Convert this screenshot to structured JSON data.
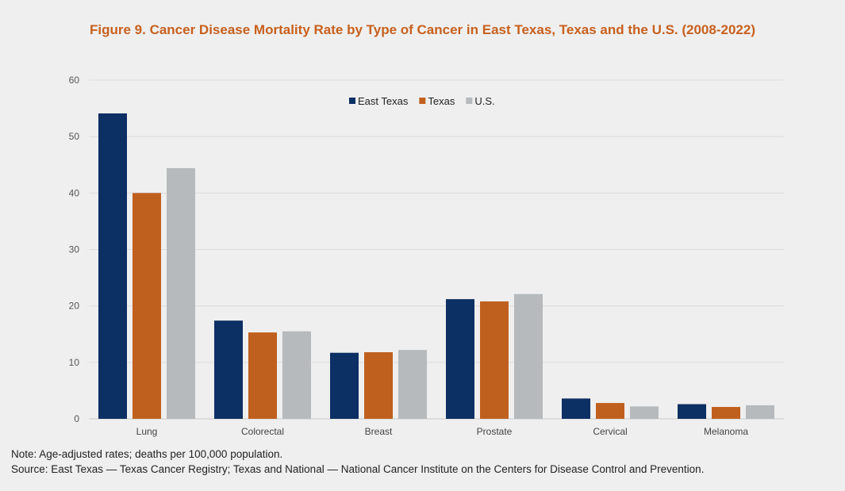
{
  "chart_data": {
    "type": "bar",
    "title": "Figure 9. Cancer Disease Mortality Rate by Type of Cancer in East Texas, Texas and the U.S. (2008-2022)",
    "categories": [
      "Lung",
      "Colorectal",
      "Breast",
      "Prostate",
      "Cervical",
      "Melanoma"
    ],
    "series": [
      {
        "name": "East Texas",
        "color": "#0c2f64",
        "values": [
          54.1,
          17.4,
          11.7,
          21.2,
          3.6,
          2.6
        ]
      },
      {
        "name": "Texas",
        "color": "#c0601f",
        "values": [
          40.0,
          15.3,
          11.8,
          20.8,
          2.8,
          2.1
        ]
      },
      {
        "name": "U.S.",
        "color": "#b6babd",
        "values": [
          44.4,
          15.5,
          12.2,
          22.1,
          2.2,
          2.4
        ]
      }
    ],
    "ylim": [
      0,
      60
    ],
    "yticks": [
      0,
      10,
      20,
      30,
      40,
      50,
      60
    ],
    "grid": true,
    "legend": "top-center",
    "xlabel": "",
    "ylabel": ""
  },
  "notes": {
    "note": "Note: Age-adjusted rates; deaths per 100,000 population.",
    "source": "Source: East Texas — Texas Cancer Registry; Texas and National —  National Cancer Institute on the Centers for Disease Control and Prevention."
  }
}
